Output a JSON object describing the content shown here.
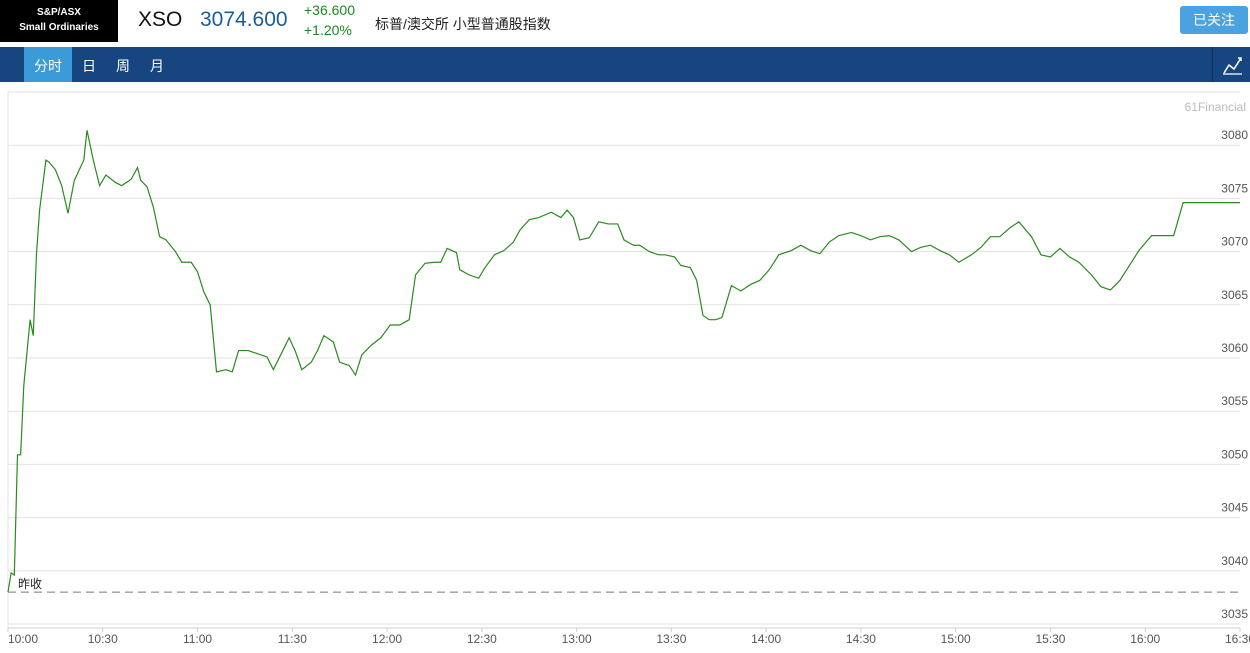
{
  "header": {
    "logo_line1": "S&P/ASX",
    "logo_line2": "Small Ordinaries",
    "symbol": "XSO",
    "price": "3074.600",
    "change": "+36.600",
    "change_pct": "+1.20%",
    "name": "标普/澳交所 小型普通股指数",
    "follow_button": "已关注"
  },
  "nav": {
    "tabs": [
      "分时",
      "日",
      "周",
      "月"
    ]
  },
  "watermark": "61Financial",
  "chart_data": {
    "type": "line",
    "color": "#2a8a1e",
    "grid": true,
    "x": [
      "10:00",
      "10:01",
      "10:02",
      "10:03",
      "10:04",
      "10:05",
      "10:07",
      "10:08",
      "10:09",
      "10:10",
      "10:12",
      "10:13",
      "10:15",
      "10:17",
      "10:19",
      "10:21",
      "10:24",
      "10:25",
      "10:27",
      "10:29",
      "10:31",
      "10:34",
      "10:36",
      "10:39",
      "10:41",
      "10:42",
      "10:44",
      "10:46",
      "10:48",
      "10:50",
      "10:53",
      "10:55",
      "10:58",
      "11:00",
      "11:02",
      "11:04",
      "11:06",
      "11:09",
      "11:11",
      "11:13",
      "11:16",
      "11:19",
      "11:22",
      "11:24",
      "11:27",
      "11:29",
      "11:31",
      "11:33",
      "11:36",
      "11:38",
      "11:40",
      "11:43",
      "11:45",
      "11:48",
      "11:50",
      "11:52",
      "11:55",
      "11:58",
      "12:01",
      "12:04",
      "12:07",
      "12:09",
      "12:12",
      "12:15",
      "12:17",
      "12:19",
      "12:22",
      "12:23",
      "12:26",
      "12:29",
      "12:31",
      "12:34",
      "12:37",
      "12:40",
      "12:42",
      "12:45",
      "12:48",
      "12:52",
      "12:55",
      "12:57",
      "12:59",
      "13:01",
      "13:04",
      "13:07",
      "13:10",
      "13:13",
      "13:15",
      "13:18",
      "13:20",
      "13:23",
      "13:26",
      "13:28",
      "13:31",
      "13:33",
      "13:36",
      "13:38",
      "13:40",
      "13:42",
      "13:44",
      "13:46",
      "13:49",
      "13:52",
      "13:55",
      "13:58",
      "14:01",
      "14:04",
      "14:08",
      "14:11",
      "14:14",
      "14:17",
      "14:20",
      "14:23",
      "14:27",
      "14:30",
      "14:33",
      "14:36",
      "14:39",
      "14:42",
      "14:46",
      "14:49",
      "14:52",
      "14:55",
      "14:58",
      "15:01",
      "15:05",
      "15:08",
      "15:11",
      "15:14",
      "15:17",
      "15:20",
      "15:24",
      "15:27",
      "15:30",
      "15:33",
      "15:36",
      "15:39",
      "15:43",
      "15:46",
      "15:49",
      "15:52",
      "15:55",
      "15:58",
      "16:02",
      "16:05",
      "16:09",
      "16:12",
      "16:30"
    ],
    "values": [
      3038.0,
      3039.8,
      3039.6,
      3050.9,
      3050.9,
      3057.4,
      3063.6,
      3062.1,
      3069.7,
      3073.9,
      3078.6,
      3078.4,
      3077.7,
      3076.2,
      3073.6,
      3076.7,
      3078.6,
      3081.4,
      3078.6,
      3076.2,
      3077.2,
      3076.5,
      3076.2,
      3076.8,
      3077.9,
      3076.7,
      3076.1,
      3074.2,
      3071.4,
      3071.1,
      3070.0,
      3069.0,
      3069.0,
      3068.1,
      3066.2,
      3065.0,
      3058.7,
      3058.9,
      3058.7,
      3060.7,
      3060.7,
      3060.4,
      3060.1,
      3058.9,
      3060.7,
      3061.9,
      3060.6,
      3058.9,
      3059.6,
      3060.7,
      3062.1,
      3061.5,
      3059.6,
      3059.3,
      3058.4,
      3060.3,
      3061.2,
      3061.9,
      3063.1,
      3063.1,
      3063.6,
      3067.8,
      3068.9,
      3069.0,
      3069.0,
      3070.3,
      3069.9,
      3068.3,
      3067.8,
      3067.5,
      3068.5,
      3069.7,
      3070.1,
      3070.9,
      3072.0,
      3073.0,
      3073.2,
      3073.7,
      3073.2,
      3073.9,
      3073.2,
      3071.1,
      3071.3,
      3072.8,
      3072.6,
      3072.6,
      3071.1,
      3070.6,
      3070.6,
      3070.0,
      3069.7,
      3069.7,
      3069.5,
      3068.7,
      3068.5,
      3067.3,
      3064.0,
      3063.6,
      3063.6,
      3063.8,
      3066.8,
      3066.3,
      3066.9,
      3067.3,
      3068.3,
      3069.7,
      3070.1,
      3070.6,
      3070.1,
      3069.8,
      3070.9,
      3071.5,
      3071.8,
      3071.5,
      3071.1,
      3071.4,
      3071.5,
      3071.1,
      3070.0,
      3070.4,
      3070.6,
      3070.1,
      3069.7,
      3069.0,
      3069.7,
      3070.4,
      3071.4,
      3071.4,
      3072.2,
      3072.8,
      3071.4,
      3069.7,
      3069.5,
      3070.3,
      3069.5,
      3069.0,
      3067.8,
      3066.7,
      3066.4,
      3067.3,
      3068.7,
      3070.1,
      3071.5,
      3071.5,
      3071.5,
      3074.6,
      3074.6
    ],
    "xlim": [
      "10:00",
      "16:30"
    ],
    "xticks": [
      "10:00",
      "10:30",
      "11:00",
      "11:30",
      "12:00",
      "12:30",
      "13:00",
      "13:30",
      "14:00",
      "14:30",
      "15:00",
      "15:30",
      "16:00",
      "16:30"
    ],
    "ylim": [
      3035,
      3085
    ],
    "yticks": [
      3035,
      3040,
      3045,
      3050,
      3055,
      3060,
      3065,
      3070,
      3075,
      3080
    ],
    "prev_close": 3038.0,
    "prev_close_label": "昨收"
  }
}
